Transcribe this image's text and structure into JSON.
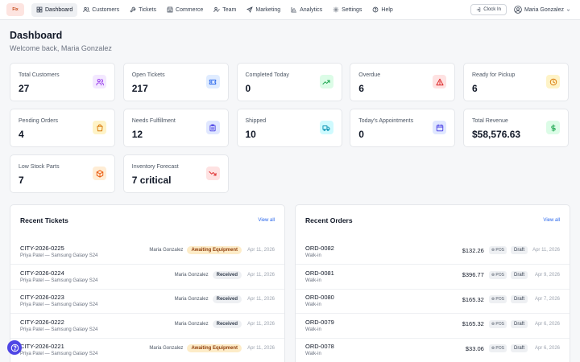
{
  "nav": {
    "logo": "Fix",
    "items": [
      {
        "label": "Dashboard",
        "icon": "dashboard-icon"
      },
      {
        "label": "Customers",
        "icon": "users-icon"
      },
      {
        "label": "Tickets",
        "icon": "wrench-icon"
      },
      {
        "label": "Commerce",
        "icon": "storefront-icon"
      },
      {
        "label": "Team",
        "icon": "team-icon"
      },
      {
        "label": "Marketing",
        "icon": "send-icon"
      },
      {
        "label": "Analytics",
        "icon": "bar-chart-icon"
      },
      {
        "label": "Settings",
        "icon": "gear-icon"
      },
      {
        "label": "Help",
        "icon": "help-circle-icon"
      }
    ],
    "clock_in": "Clock In",
    "user_name": "Maria Gonzalez"
  },
  "header": {
    "title": "Dashboard",
    "subtitle": "Welcome back, Maria Gonzalez"
  },
  "stats": [
    {
      "label": "Total Customers",
      "value": "27",
      "icon": "users-icon",
      "color": "#9333ea",
      "bg": "#f3e8ff"
    },
    {
      "label": "Open Tickets",
      "value": "217",
      "icon": "ticket-icon",
      "color": "#2563eb",
      "bg": "#e0ecff"
    },
    {
      "label": "Completed Today",
      "value": "0",
      "icon": "trending-up-icon",
      "color": "#16a34a",
      "bg": "#dcfce7"
    },
    {
      "label": "Overdue",
      "value": "6",
      "icon": "alert-triangle-icon",
      "color": "#dc2626",
      "bg": "#fee2e2"
    },
    {
      "label": "Ready for Pickup",
      "value": "6",
      "icon": "clock-icon",
      "color": "#d97706",
      "bg": "#fef3c7"
    },
    {
      "label": "Pending Orders",
      "value": "4",
      "icon": "shopping-bag-icon",
      "color": "#d97706",
      "bg": "#fef3c7"
    },
    {
      "label": "Needs Fulfillment",
      "value": "12",
      "icon": "clipboard-icon",
      "color": "#4f46e5",
      "bg": "#e0e7ff"
    },
    {
      "label": "Shipped",
      "value": "10",
      "icon": "truck-icon",
      "color": "#0891b2",
      "bg": "#cffafe"
    },
    {
      "label": "Today's Appointments",
      "value": "0",
      "icon": "calendar-icon",
      "color": "#4f46e5",
      "bg": "#e0e7ff"
    },
    {
      "label": "Total Revenue",
      "value": "$58,576.63",
      "icon": "dollar-icon",
      "color": "#16a34a",
      "bg": "#dcfce7"
    },
    {
      "label": "Low Stock Parts",
      "value": "7",
      "icon": "package-icon",
      "color": "#ea580c",
      "bg": "#ffedd5"
    },
    {
      "label": "Inventory Forecast",
      "value": "7 critical",
      "icon": "trending-down-icon",
      "color": "#dc2626",
      "bg": "#fee2e2"
    }
  ],
  "tickets": {
    "title": "Recent Tickets",
    "view_all": "View all",
    "rows": [
      {
        "id": "CITY-2026-0225",
        "sub": "Priya Patel — Samsung Galaxy S24",
        "assignee": "Maria Gonzalez",
        "status": "Awaiting Equipment",
        "date": "Apr 11, 2026"
      },
      {
        "id": "CITY-2026-0224",
        "sub": "Priya Patel — Samsung Galaxy S24",
        "assignee": "Maria Gonzalez",
        "status": "Received",
        "date": "Apr 11, 2026"
      },
      {
        "id": "CITY-2026-0223",
        "sub": "Priya Patel — Samsung Galaxy S24",
        "assignee": "Maria Gonzalez",
        "status": "Received",
        "date": "Apr 11, 2026"
      },
      {
        "id": "CITY-2026-0222",
        "sub": "Priya Patel — Samsung Galaxy S24",
        "assignee": "Maria Gonzalez",
        "status": "Received",
        "date": "Apr 11, 2026"
      },
      {
        "id": "CITY-2026-0221",
        "sub": "Priya Patel — Samsung Galaxy S24",
        "assignee": "Maria Gonzalez",
        "status": "Awaiting Equipment",
        "date": "Apr 11, 2026"
      }
    ]
  },
  "orders": {
    "title": "Recent Orders",
    "view_all": "View all",
    "rows": [
      {
        "id": "ORD-0082",
        "sub": "Walk-in",
        "amount": "$132.26",
        "channel": "POS",
        "status": "Draft",
        "date": "Apr 11, 2026"
      },
      {
        "id": "ORD-0081",
        "sub": "Walk-in",
        "amount": "$396.77",
        "channel": "POS",
        "status": "Draft",
        "date": "Apr 9, 2026"
      },
      {
        "id": "ORD-0080",
        "sub": "Walk-in",
        "amount": "$165.32",
        "channel": "POS",
        "status": "Draft",
        "date": "Apr 7, 2026"
      },
      {
        "id": "ORD-0079",
        "sub": "Walk-in",
        "amount": "$165.32",
        "channel": "POS",
        "status": "Draft",
        "date": "Apr 6, 2026"
      },
      {
        "id": "ORD-0078",
        "sub": "Walk-in",
        "amount": "$33.06",
        "channel": "POS",
        "status": "Draft",
        "date": "Apr 6, 2026"
      }
    ]
  }
}
